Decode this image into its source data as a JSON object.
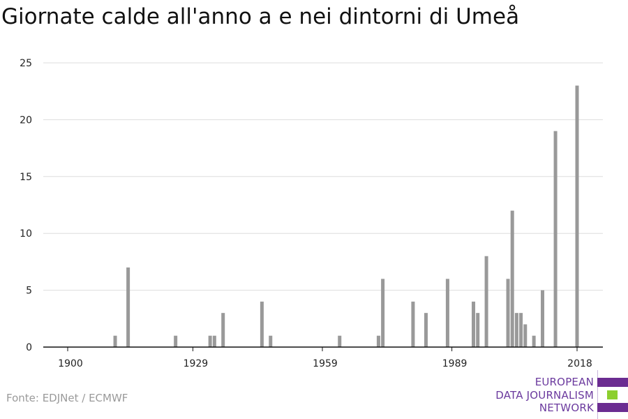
{
  "title": "Giornate calde all'anno a e nei dintorni di Umeå",
  "source": "Fonte: EDJNet / ECMWF",
  "logo": {
    "lines": [
      "EUROPEAN",
      "DATA JOURNALISM",
      "NETWORK"
    ]
  },
  "colors": {
    "bar": "#999999",
    "axis": "#111111",
    "grid": "#dddddd",
    "brand_purple": "#6b2c91",
    "brand_green": "#8ccf2e"
  },
  "chart_data": {
    "type": "bar",
    "title": "Giornate calde all'anno a e nei dintorni di Umeå",
    "xlabel": "",
    "ylabel": "",
    "xlim": [
      1900,
      2018
    ],
    "ylim": [
      0,
      25
    ],
    "yticks": [
      0,
      5,
      10,
      15,
      20,
      25
    ],
    "xticks": [
      1900,
      1929,
      1959,
      1989,
      2018
    ],
    "grid": true,
    "series": [
      {
        "x": [
          1911,
          1914,
          1925,
          1933,
          1934,
          1936,
          1945,
          1947,
          1963,
          1972,
          1973,
          1980,
          1983,
          1988,
          1994,
          1995,
          1997,
          2002,
          2003,
          2004,
          2005,
          2006,
          2008,
          2010,
          2013,
          2018
        ],
        "values": [
          1,
          7,
          1,
          1,
          1,
          3,
          4,
          1,
          1,
          1,
          6,
          4,
          3,
          6,
          4,
          3,
          8,
          6,
          12,
          3,
          3,
          2,
          1,
          5,
          19,
          23
        ]
      }
    ]
  }
}
